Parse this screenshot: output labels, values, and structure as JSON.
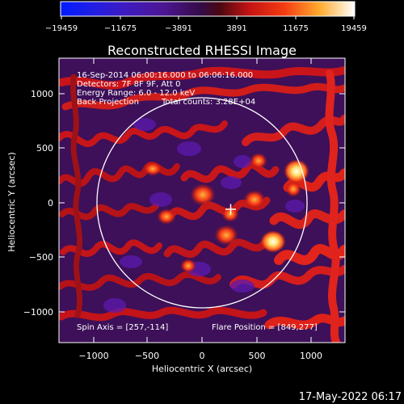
{
  "colorbar": {
    "tick_labels": [
      "−19459",
      "−11675",
      "−3891",
      "3891",
      "11675",
      "19459"
    ],
    "min": -19459,
    "max": 19459
  },
  "title": "Reconstructed RHESSI Image",
  "info": {
    "line1": "16-Sep-2014 06:00:16.000 to 06:06:16.000",
    "line2": "Detectors: 7F 8F 9F, Att 0",
    "line3": "Energy Range: 6.0 - 12.0 keV",
    "line4_left": "Back Projection",
    "line4_right": "Total counts: 3.28E+04"
  },
  "spin_axis": "Spin Axis = [257,-114]",
  "flare_position": "Flare Position = [849,277]",
  "xaxis": {
    "label": "Heliocentric X (arcsec)",
    "ticks": [
      -1000,
      -500,
      0,
      500,
      1000
    ],
    "tick_labels": [
      "−1000",
      "−500",
      "0",
      "500",
      "1000"
    ]
  },
  "yaxis": {
    "label": "Heliocentric Y (arcsec)",
    "ticks": [
      1000,
      500,
      0,
      -500,
      -1000
    ],
    "tick_labels": [
      "1000",
      "500",
      "0",
      "−500",
      "−1000"
    ]
  },
  "timestamp": "17-May-2022 06:17",
  "marker": {
    "x_arcsec": 257,
    "y_arcsec": -114
  },
  "colors": {
    "background": "#000000",
    "text": "#ffffff"
  }
}
